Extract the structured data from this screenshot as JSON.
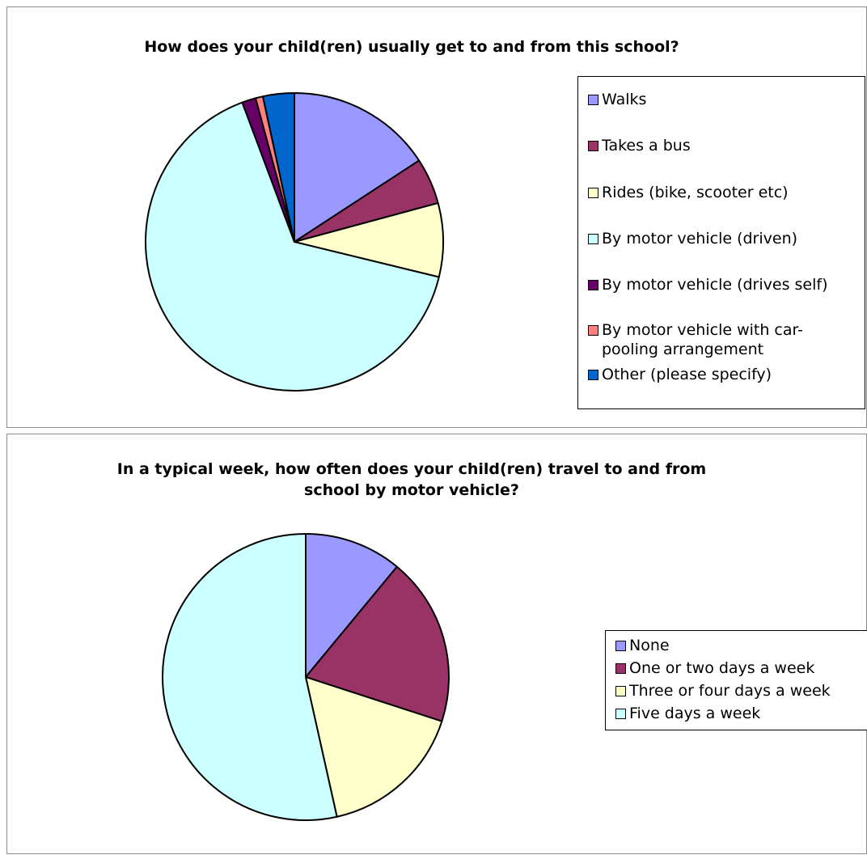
{
  "colors": {
    "periwinkle": "#9999ff",
    "plum": "#993366",
    "ivory": "#ffffcc",
    "light_turquoise": "#ccffff",
    "dark_purple": "#660066",
    "coral": "#ff8080",
    "ocean_blue": "#0066cc"
  },
  "chart_data": [
    {
      "type": "pie",
      "title": "How does your child(ren) usually get to and from this school?",
      "categories": [
        "Walks",
        "Takes a bus",
        "Rides (bike, scooter etc)",
        "By motor vehicle (driven)",
        "By motor vehicle (drives self)",
        "By motor vehicle with car-pooling arrangement",
        "Other (please specify)"
      ],
      "values": [
        15.8,
        5.0,
        8.0,
        65.5,
        1.5,
        0.8,
        3.4
      ],
      "colors": [
        "#9999ff",
        "#993366",
        "#ffffcc",
        "#ccffff",
        "#660066",
        "#ff8080",
        "#0066cc"
      ],
      "legend_position": "right"
    },
    {
      "type": "pie",
      "title": "In a typical week, how often does your child(ren) travel to and from school by motor vehicle?",
      "categories": [
        "None",
        "One or two days a week",
        "Three or four days a week",
        "Five days a week"
      ],
      "values": [
        11.0,
        19.0,
        16.5,
        53.5
      ],
      "colors": [
        "#9999ff",
        "#993366",
        "#ffffcc",
        "#ccffff"
      ],
      "legend_position": "right"
    }
  ],
  "charts": {
    "c1": {
      "title": "How does your child(ren) usually get to and from this school?",
      "legend": [
        "Walks",
        "Takes a bus",
        "Rides (bike, scooter etc)",
        "By motor vehicle (driven)",
        "By motor vehicle (drives self)",
        "By motor vehicle with car-",
        "pooling arrangement",
        "Other (please specify)"
      ]
    },
    "c2": {
      "title_line1": "In a typical week, how often does your child(ren) travel to and from",
      "title_line2": "school by motor vehicle?",
      "legend": [
        "None",
        "One or two days a week",
        "Three or four days a week",
        "Five days a week"
      ]
    }
  }
}
